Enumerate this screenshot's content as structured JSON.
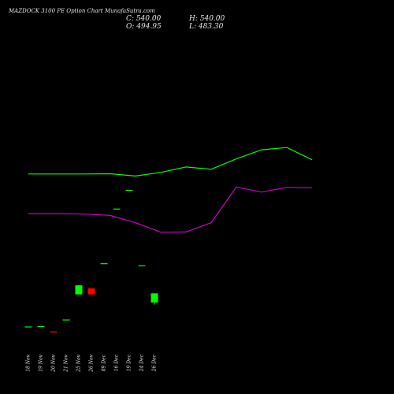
{
  "header": {
    "title": "MAZDOCK 3100  PE Option  Chart MunafaSutra.com",
    "close_label": "C: 540.00",
    "high_label": "H: 540.00",
    "open_label": "O: 494.95",
    "low_label": "L: 483.30"
  },
  "chart_data": {
    "type": "candlestick",
    "title": "MAZDOCK 3100  PE Option  Chart MunafaSutra.com",
    "xlabel": "",
    "ylabel": "",
    "categories": [
      "18 Nov",
      "19 Nov",
      "20 Nov",
      "21 Nov",
      "25 Nov",
      "26 Nov",
      "09 Dec",
      "16 Dec",
      "19 Dec",
      "24 Dec",
      "26 Dec"
    ],
    "candles": [
      {
        "open": 375,
        "close": 375,
        "high": 375,
        "low": 375,
        "color": "#00ff00"
      },
      {
        "open": 377,
        "close": 377,
        "high": 377,
        "low": 377,
        "color": "#00ff00"
      },
      {
        "open": 351,
        "close": 346,
        "high": 351,
        "low": 346,
        "color": "#ff0000"
      },
      {
        "open": 410,
        "close": 410,
        "high": 410,
        "low": 410,
        "color": "#00ff00"
      },
      {
        "open": 535,
        "close": 580,
        "high": 582,
        "low": 535,
        "color": "#00ff00"
      },
      {
        "open": 565,
        "close": 535,
        "high": 565,
        "low": 535,
        "color": "#ff0000"
      },
      {
        "open": 690,
        "close": 690,
        "high": 690,
        "low": 690,
        "color": "#00ff00"
      },
      {
        "open": 962,
        "close": 962,
        "high": 962,
        "low": 962,
        "color": "#00ff00"
      },
      {
        "open": 1055,
        "close": 1055,
        "high": 1055,
        "low": 1055,
        "color": "#00ff00"
      },
      {
        "open": 680,
        "close": 680,
        "high": 680,
        "low": 680,
        "color": "#00ff00"
      },
      {
        "open": 494.95,
        "close": 540,
        "high": 540,
        "low": 483.3,
        "color": "#00ff00"
      }
    ],
    "series": [
      {
        "color": "#00ff00",
        "x": [
          0,
          2.5,
          4.5,
          6.5,
          8.5,
          10.5,
          12.5,
          14.5,
          16.5,
          18.5,
          20.5,
          22.5
        ],
        "values": [
          2925,
          2925,
          2925,
          2930,
          2880,
          2960,
          3080,
          3030,
          3260,
          3460,
          3510,
          3240
        ]
      },
      {
        "color": "#cc00cc",
        "x": [
          0,
          2.5,
          4.5,
          6.5,
          8.5,
          10.5,
          12.5,
          14.5,
          16.5,
          18.5,
          20.5,
          22.5
        ],
        "values": [
          2050,
          2050,
          2040,
          2010,
          1850,
          1640,
          1645,
          1850,
          2640,
          2525,
          2630,
          2620
        ]
      }
    ],
    "legend": "none",
    "grid": false
  }
}
